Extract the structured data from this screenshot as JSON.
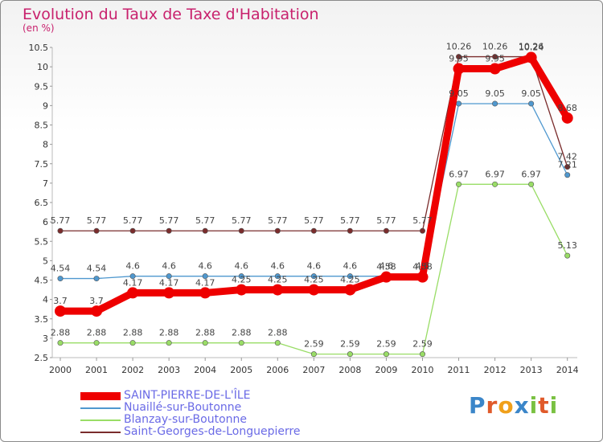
{
  "chart_data": {
    "type": "line",
    "title": "Evolution du Taux de Taxe d'Habitation",
    "subtitle": "(en %)",
    "xlabel": "",
    "ylabel": "",
    "x": [
      "2000",
      "2001",
      "2002",
      "2003",
      "2004",
      "2005",
      "2006",
      "2007",
      "2008",
      "2009",
      "2010",
      "2011",
      "2012",
      "2013",
      "2014"
    ],
    "ylim": [
      2.5,
      10.5
    ],
    "yticks": [
      "2.5",
      "3",
      "3.5",
      "4",
      "4.5",
      "5",
      "5.5",
      "6",
      "6.5",
      "7",
      "7.5",
      "8",
      "8.5",
      "9",
      "9.5",
      "10",
      "10.5"
    ],
    "grid": false,
    "legend_position": "bottom-left",
    "series": [
      {
        "name": "SAINT-PIERRE-DE-L'ÎLE",
        "color": "#ee0000",
        "values": [
          3.7,
          3.7,
          4.17,
          4.17,
          4.17,
          4.25,
          4.25,
          4.25,
          4.25,
          4.58,
          4.58,
          9.95,
          9.95,
          10.24,
          8.68
        ],
        "labels": [
          "3.7",
          "3.7",
          "4.17",
          "4.17",
          "4.17",
          "4.25",
          "4.25",
          "4.25",
          "4.25",
          "4.58",
          "4.58",
          "9.95",
          "9.95",
          "10.24",
          "8.68"
        ]
      },
      {
        "name": "Nuaillé-sur-Boutonne",
        "color": "#4f98cf",
        "values": [
          4.54,
          4.54,
          4.6,
          4.6,
          4.6,
          4.6,
          4.6,
          4.6,
          4.6,
          4.6,
          4.6,
          9.05,
          9.05,
          9.05,
          7.21
        ],
        "labels": [
          "4.54",
          "4.54",
          "4.6",
          "4.6",
          "4.6",
          "4.6",
          "4.6",
          "4.6",
          "4.6",
          "4.6",
          "4.6",
          "9.05",
          "9.05",
          "9.05",
          "7.21"
        ]
      },
      {
        "name": "Blanzay-sur-Boutonne",
        "color": "#99dd66",
        "values": [
          2.88,
          2.88,
          2.88,
          2.88,
          2.88,
          2.88,
          2.88,
          2.59,
          2.59,
          2.59,
          2.59,
          6.97,
          6.97,
          6.97,
          5.13
        ],
        "labels": [
          "2.88",
          "2.88",
          "2.88",
          "2.88",
          "2.88",
          "2.88",
          "2.88",
          "2.59",
          "2.59",
          "2.59",
          "2.59",
          "6.97",
          "6.97",
          "6.97",
          "5.13"
        ]
      },
      {
        "name": "Saint-Georges-de-Longuepierre",
        "color": "#7a2c2c",
        "values": [
          5.77,
          5.77,
          5.77,
          5.77,
          5.77,
          5.77,
          5.77,
          5.77,
          5.77,
          5.77,
          5.77,
          10.26,
          10.26,
          10.26,
          7.42
        ],
        "labels": [
          "5.77",
          "5.77",
          "5.77",
          "5.77",
          "5.77",
          "5.77",
          "5.77",
          "5.77",
          "5.77",
          "5.77",
          "5.77",
          "10.26",
          "10.26",
          "10.26",
          "7.42"
        ]
      }
    ]
  },
  "logo": {
    "letters": [
      {
        "ch": "P",
        "color": "#3b86c9"
      },
      {
        "ch": "r",
        "color": "#e05a2a"
      },
      {
        "ch": "o",
        "color": "#f0a01a"
      },
      {
        "ch": "x",
        "color": "#3b86c9"
      },
      {
        "ch": "i",
        "color": "#7ac142"
      },
      {
        "ch": "t",
        "color": "#e05a2a"
      },
      {
        "ch": "i",
        "color": "#7ac142"
      }
    ]
  }
}
